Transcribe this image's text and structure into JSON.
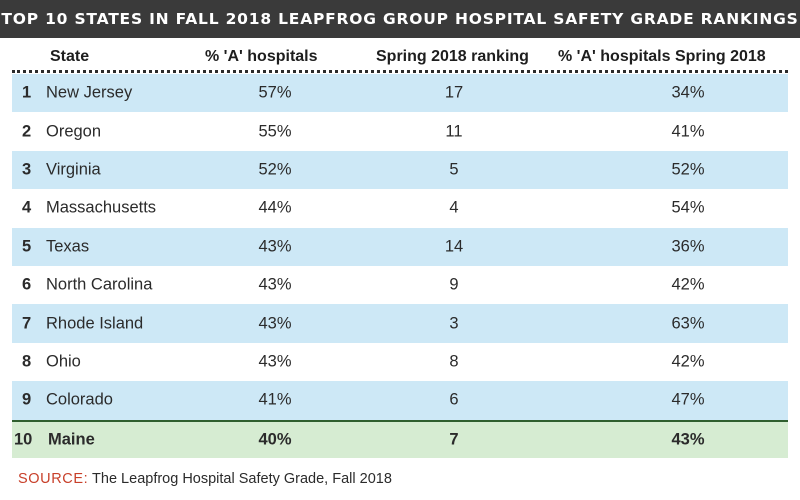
{
  "title": "TOP 10 STATES IN FALL 2018 LEAPFROG GROUP HOSPITAL SAFETY GRADE RANKINGS",
  "chart_data": {
    "type": "table",
    "columns": [
      "State",
      "% 'A' hospitals",
      "Spring 2018 ranking",
      "% 'A' hospitals Spring 2018"
    ],
    "rows": [
      {
        "rank": "1",
        "state": "New Jersey",
        "pct_a": "57%",
        "spring_rank": "17",
        "pct_a_spring": "34%"
      },
      {
        "rank": "2",
        "state": "Oregon",
        "pct_a": "55%",
        "spring_rank": "11",
        "pct_a_spring": "41%"
      },
      {
        "rank": "3",
        "state": "Virginia",
        "pct_a": "52%",
        "spring_rank": "5",
        "pct_a_spring": "52%"
      },
      {
        "rank": "4",
        "state": "Massachusetts",
        "pct_a": "44%",
        "spring_rank": "4",
        "pct_a_spring": "54%"
      },
      {
        "rank": "5",
        "state": "Texas",
        "pct_a": "43%",
        "spring_rank": "14",
        "pct_a_spring": "36%"
      },
      {
        "rank": "6",
        "state": "North Carolina",
        "pct_a": "43%",
        "spring_rank": "9",
        "pct_a_spring": "42%"
      },
      {
        "rank": "7",
        "state": "Rhode Island",
        "pct_a": "43%",
        "spring_rank": "3",
        "pct_a_spring": "63%"
      },
      {
        "rank": "8",
        "state": "Ohio",
        "pct_a": "43%",
        "spring_rank": "8",
        "pct_a_spring": "42%"
      },
      {
        "rank": "9",
        "state": "Colorado",
        "pct_a": "41%",
        "spring_rank": "6",
        "pct_a_spring": "47%"
      },
      {
        "rank": "10",
        "state": "Maine",
        "pct_a": "40%",
        "spring_rank": "7",
        "pct_a_spring": "43%"
      }
    ]
  },
  "source": {
    "label": "SOURCE:",
    "text": "The Leapfrog Hospital Safety Grade, Fall 2018"
  },
  "colors": {
    "title_bg": "#3a3a3a",
    "row_shade": "#cde8f6",
    "final_row": "#d6ecd2",
    "source_label": "#c8402a"
  }
}
